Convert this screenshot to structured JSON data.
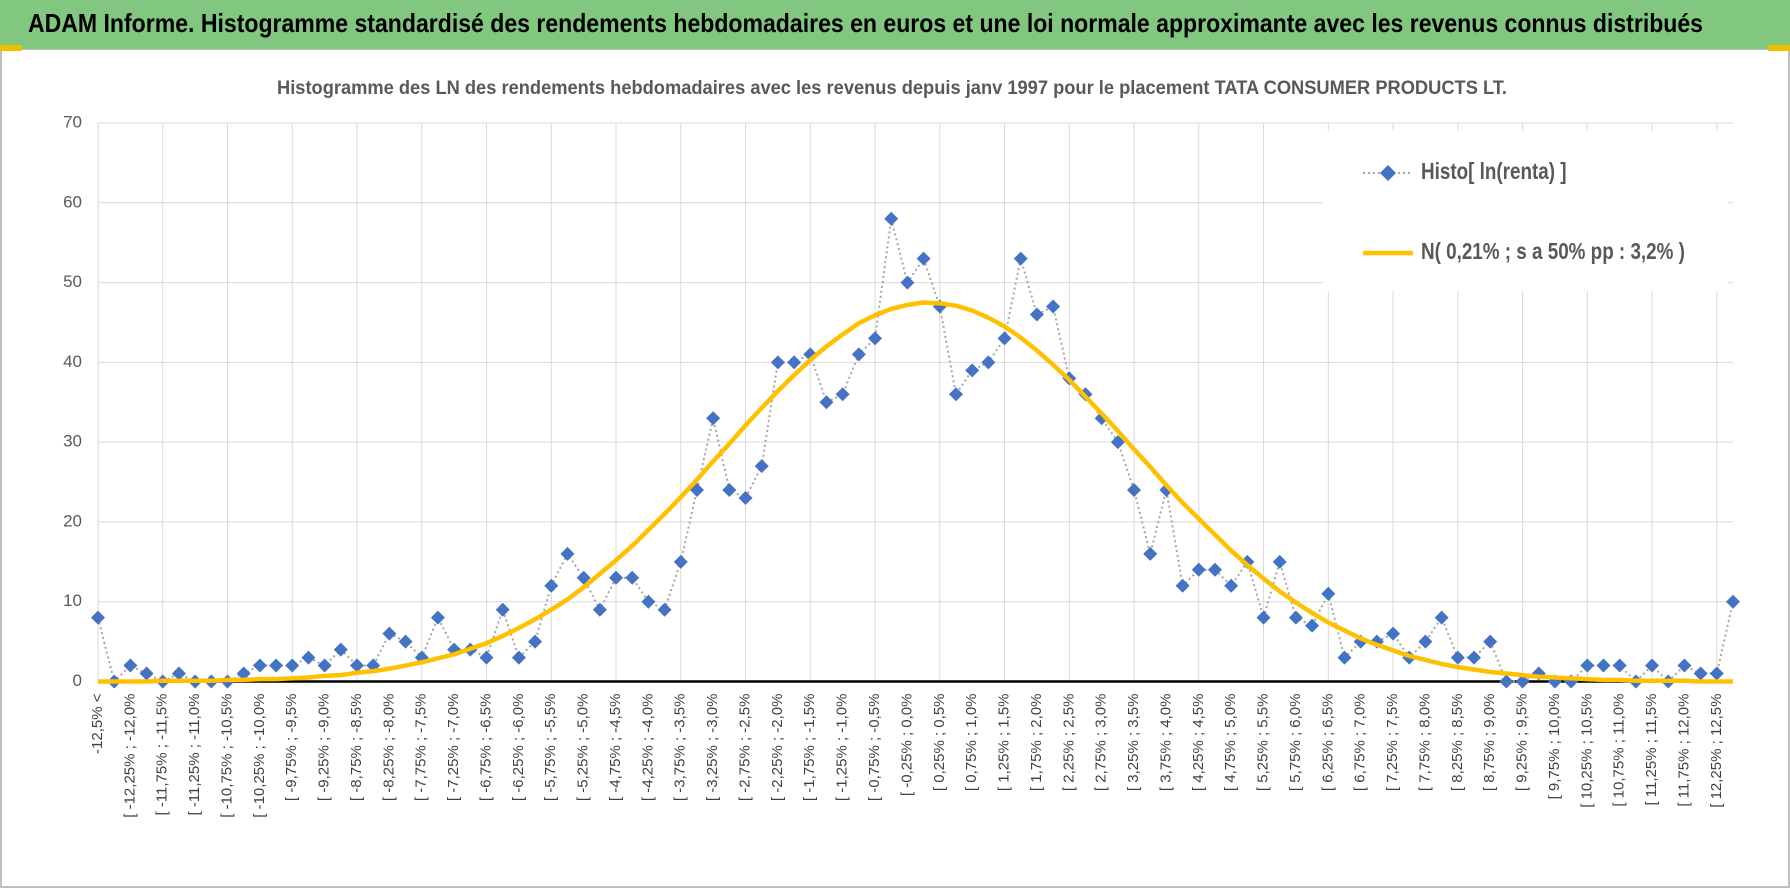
{
  "header": {
    "title": "ADAM Informe. Histogramme standardisé des rendements hebdomadaires en euros et une loi normale approximante avec les revenus connus distribués"
  },
  "chart_data": {
    "type": "line",
    "title": "Histogramme  des LN des rendements hebdomadaires avec les revenus depuis janv 1997 pour le placement TATA CONSUMER PRODUCTS LT.",
    "categories": [
      "-12,5% <",
      null,
      "[ -12,25% ; -12,0%",
      null,
      "[ -11,75% ; -11,5%",
      null,
      "[ -11,25% ; -11,0%",
      null,
      "[ -10,75% ; -10,5%",
      null,
      "[ -10,25% ; -10,0%",
      null,
      "[ -9,75% ; -9,5%",
      null,
      "[ -9,25% ; -9,0%",
      null,
      "[ -8,75% ; -8,5%",
      null,
      "[ -8,25% ; -8,0%",
      null,
      "[ -7,75% ; -7,5%",
      null,
      "[ -7,25% ; -7,0%",
      null,
      "[ -6,75% ; -6,5%",
      null,
      "[ -6,25% ; -6,0%",
      null,
      "[ -5,75% ; -5,5%",
      null,
      "[ -5,25% ; -5,0%",
      null,
      "[ -4,75% ; -4,5%",
      null,
      "[ -4,25% ; -4,0%",
      null,
      "[ -3,75% ; -3,5%",
      null,
      "[ -3,25% ; -3,0%",
      null,
      "[ -2,75% ; -2,5%",
      null,
      "[ -2,25% ; -2,0%",
      null,
      "[ -1,75% ; -1,5%",
      null,
      "[ -1,25% ; -1,0%",
      null,
      "[ -0,75% ; -0,5%",
      null,
      "[ -0,25% ; 0,0%",
      null,
      "[ 0,25% ; 0,5%",
      null,
      "[ 0,75% ; 1,0%",
      null,
      "[ 1,25% ; 1,5%",
      null,
      "[ 1,75% ; 2,0%",
      null,
      "[ 2,25% ; 2,5%",
      null,
      "[ 2,75% ; 3,0%",
      null,
      "[ 3,25% ; 3,5%",
      null,
      "[ 3,75% ; 4,0%",
      null,
      "[ 4,25% ; 4,5%",
      null,
      "[ 4,75% ; 5,0%",
      null,
      "[ 5,25% ; 5,5%",
      null,
      "[ 5,75% ; 6,0%",
      null,
      "[ 6,25% ; 6,5%",
      null,
      "[ 6,75% ; 7,0%",
      null,
      "[ 7,25% ; 7,5%",
      null,
      "[ 7,75% ; 8,0%",
      null,
      "[ 8,25% ; 8,5%",
      null,
      "[ 8,75% ; 9,0%",
      null,
      "[ 9,25% ; 9,5%",
      null,
      "[ 9,75% ; 10,0%",
      null,
      "[ 10,25% ; 10,5%",
      null,
      "[ 10,75% ; 11,0%",
      null,
      "[ 11,25% ; 11,5%",
      null,
      "[ 11,75% ; 12,0%",
      null,
      "[ 12,25% ; 12,5%",
      null
    ],
    "series": [
      {
        "name": "Histo[ ln(renta) ]",
        "color": "#4472c4",
        "line_color": "#a6a6a6",
        "marker": "diamond",
        "values": [
          8,
          0,
          2,
          1,
          0,
          1,
          0,
          0,
          0,
          1,
          2,
          2,
          2,
          3,
          2,
          4,
          2,
          2,
          6,
          5,
          3,
          8,
          4,
          4,
          3,
          9,
          3,
          5,
          12,
          16,
          13,
          9,
          13,
          13,
          10,
          9,
          15,
          24,
          33,
          24,
          23,
          27,
          40,
          40,
          41,
          35,
          36,
          41,
          43,
          58,
          50,
          53,
          47,
          36,
          39,
          40,
          43,
          53,
          46,
          47,
          38,
          36,
          33,
          30,
          24,
          16,
          24,
          12,
          14,
          14,
          12,
          15,
          8,
          15,
          8,
          7,
          11,
          3,
          5,
          5,
          6,
          3,
          5,
          8,
          3,
          3,
          5,
          0,
          0,
          1,
          0,
          0,
          2,
          2,
          2,
          0,
          2,
          0,
          2,
          1,
          1,
          10
        ]
      },
      {
        "name": "N( 0,21% ; s a 50% pp : 3,2% )",
        "color": "#ffc000",
        "values": [
          0.0,
          0.0,
          0.0,
          0.0,
          0.1,
          0.1,
          0.1,
          0.1,
          0.2,
          0.2,
          0.3,
          0.3,
          0.4,
          0.5,
          0.7,
          0.8,
          1.1,
          1.3,
          1.6,
          2.0,
          2.4,
          2.9,
          3.4,
          4.1,
          4.8,
          5.7,
          6.7,
          7.8,
          9.0,
          10.3,
          11.8,
          13.5,
          15.2,
          17.0,
          19.0,
          21.0,
          23.1,
          25.3,
          27.6,
          29.8,
          32.1,
          34.3,
          36.4,
          38.4,
          40.3,
          42.0,
          43.5,
          44.9,
          45.9,
          46.7,
          47.2,
          47.5,
          47.4,
          47.1,
          46.5,
          45.6,
          44.5,
          43.1,
          41.5,
          39.7,
          37.8,
          35.7,
          33.6,
          31.4,
          29.1,
          26.9,
          24.6,
          22.4,
          20.4,
          18.4,
          16.4,
          14.6,
          12.9,
          11.3,
          9.9,
          8.6,
          7.4,
          6.4,
          5.4,
          4.6,
          3.9,
          3.2,
          2.7,
          2.2,
          1.8,
          1.5,
          1.2,
          1.0,
          0.8,
          0.6,
          0.5,
          0.4,
          0.3,
          0.2,
          0.2,
          0.1,
          0.1,
          0.1,
          0.1,
          0.0,
          0.0,
          0.0
        ]
      }
    ],
    "ylim": [
      0,
      70
    ],
    "yticks": [
      0,
      10,
      20,
      30,
      40,
      50,
      60,
      70
    ],
    "grid": true,
    "legend": "top-right"
  }
}
